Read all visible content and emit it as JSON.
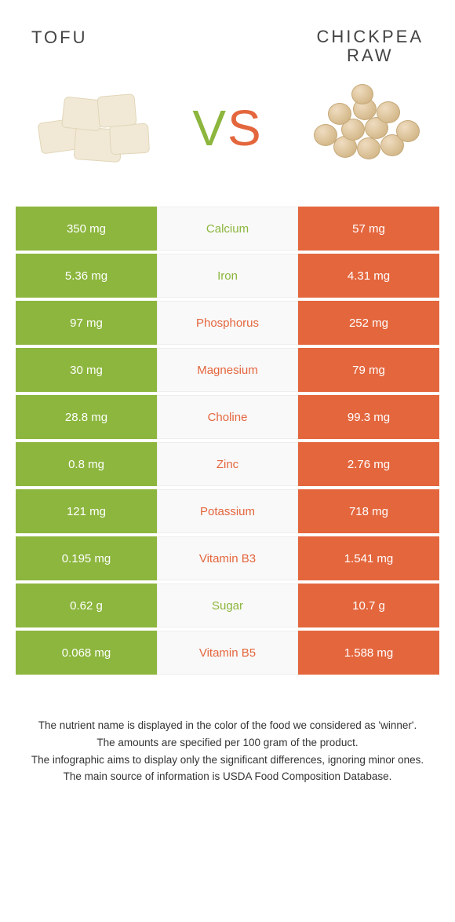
{
  "colors": {
    "green": "#8cb63d",
    "orange": "#e4663d",
    "mid_bg": "#f9f9f9",
    "text": "#333333"
  },
  "left_food": "TOFU",
  "right_food_line1": "CHICKPEA",
  "right_food_line2": "RAW",
  "vs_v": "V",
  "vs_s": "S",
  "rows": [
    {
      "left": "350 mg",
      "label": "Calcium",
      "right": "57 mg",
      "winner": "left"
    },
    {
      "left": "5.36 mg",
      "label": "Iron",
      "right": "4.31 mg",
      "winner": "left"
    },
    {
      "left": "97 mg",
      "label": "Phosphorus",
      "right": "252 mg",
      "winner": "right"
    },
    {
      "left": "30 mg",
      "label": "Magnesium",
      "right": "79 mg",
      "winner": "right"
    },
    {
      "left": "28.8 mg",
      "label": "Choline",
      "right": "99.3 mg",
      "winner": "right"
    },
    {
      "left": "0.8 mg",
      "label": "Zinc",
      "right": "2.76 mg",
      "winner": "right"
    },
    {
      "left": "121 mg",
      "label": "Potassium",
      "right": "718 mg",
      "winner": "right"
    },
    {
      "left": "0.195 mg",
      "label": "Vitamin B3",
      "right": "1.541 mg",
      "winner": "right"
    },
    {
      "left": "0.62 g",
      "label": "Sugar",
      "right": "10.7 g",
      "winner": "left"
    },
    {
      "left": "0.068 mg",
      "label": "Vitamin B5",
      "right": "1.588 mg",
      "winner": "right"
    }
  ],
  "footnotes": [
    "The nutrient name is displayed in the color of the food we considered as 'winner'.",
    "The amounts are specified per 100 gram of the product.",
    "The infographic aims to display only the significant differences, ignoring minor ones.",
    "The main source of information is USDA Food Composition Database."
  ]
}
